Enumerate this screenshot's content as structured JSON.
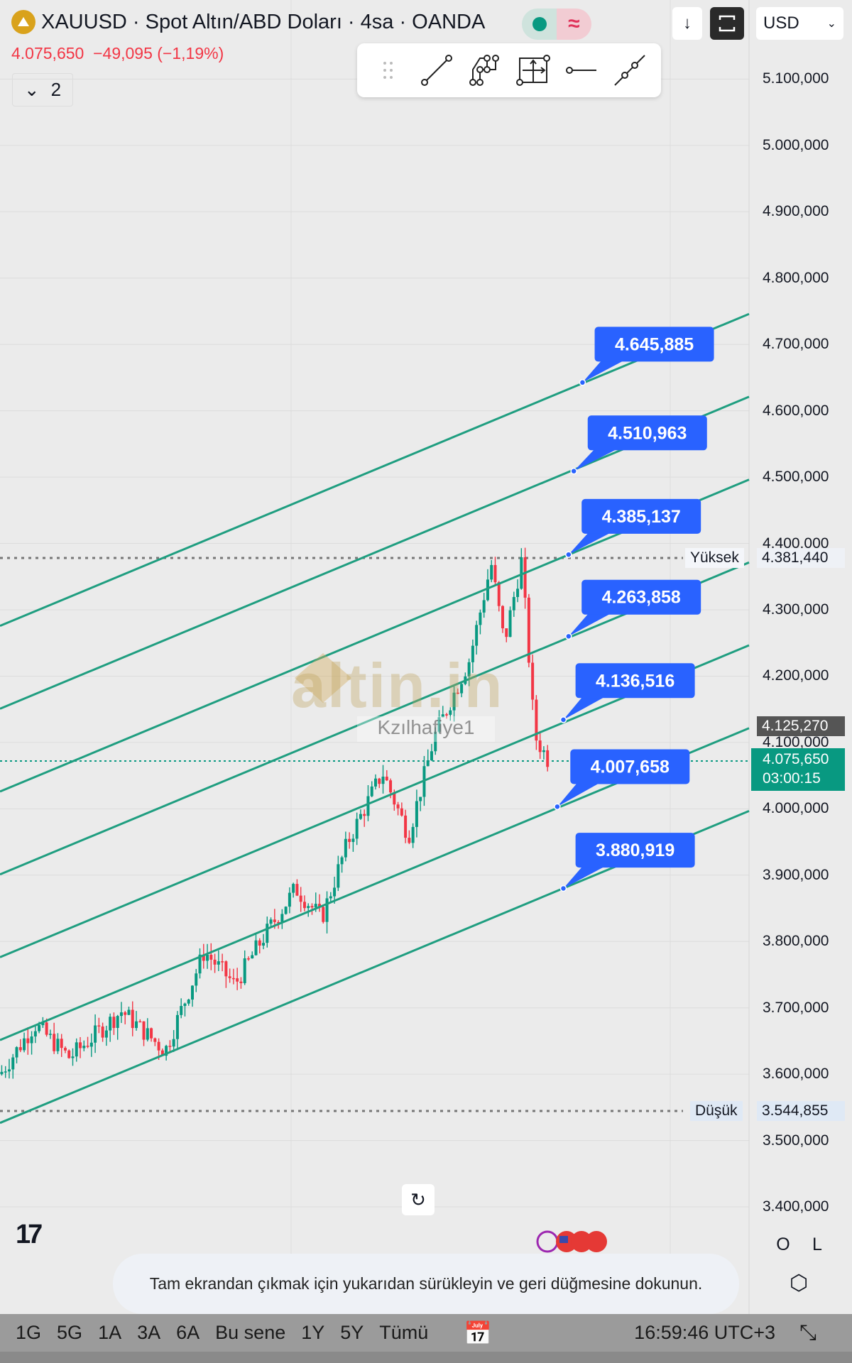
{
  "header": {
    "symbol_title": "XAUUSD · Spot Altın/ABD Doları · 4sa · OANDA",
    "last_price": "4.075,650",
    "change": "−49,095 (−1,19%)",
    "indicators_toggle": "2",
    "status_dot_color": "#089981"
  },
  "toolbar": {
    "tools": [
      "trend-line-icon",
      "path-icon",
      "long-position-icon",
      "horizontal-ray-icon",
      "extended-line-icon"
    ]
  },
  "top_right": {
    "currency": "USD"
  },
  "price_axis": {
    "ticks": [
      "5.100,000",
      "5.000,000",
      "4.900,000",
      "4.800,000",
      "4.700,000",
      "4.600,000",
      "4.500,000",
      "4.400,000",
      "4.300,000",
      "4.200,000",
      "4.100,000",
      "4.000,000",
      "3.900,000",
      "3.800,000",
      "3.700,000",
      "3.600,000",
      "3.500,000",
      "3.400,000"
    ],
    "high_label": "Yüksek",
    "high_value": "4.381,440",
    "low_label": "Düşük",
    "low_value": "3.544,855",
    "crosshair_value": "4.125,270",
    "current_value": "4.075,650",
    "countdown": "03:00:15"
  },
  "channel_labels": [
    "4.645,885",
    "4.510,963",
    "4.385,137",
    "4.263,858",
    "4.136,516",
    "4.007,658",
    "3.880,919"
  ],
  "watermark": {
    "brand": "altin.in",
    "user": "Kzılhafiye1"
  },
  "colors": {
    "up": "#089981",
    "down": "#f23645",
    "line": "#1f9e80",
    "label": "#2962ff"
  },
  "scale_buttons": [
    "O",
    "L"
  ],
  "toast": "Tam ekrandan çıkmak için yukarıdan sürükleyin ve geri düğmesine dokunun.",
  "bottom": {
    "ranges": [
      "1G",
      "5G",
      "1A",
      "3A",
      "6A",
      "Bu sene",
      "1Y",
      "5Y",
      "Tümü"
    ],
    "time": "16:59:46 UTC+3"
  }
}
